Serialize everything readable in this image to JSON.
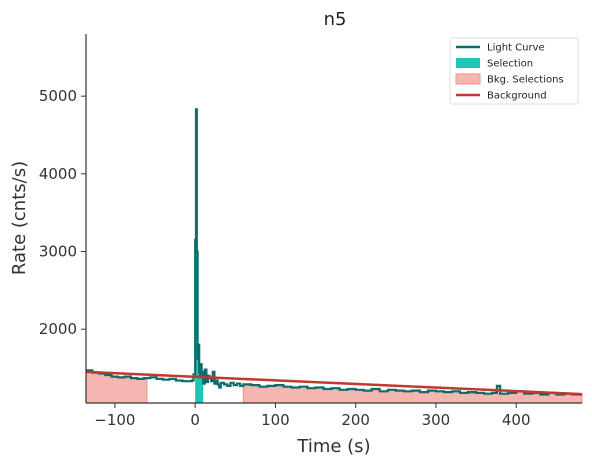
{
  "chart_data": {
    "type": "line",
    "title": "n5",
    "xlabel": "Time (s)",
    "ylabel": "Rate (cnts/s)",
    "xlim": [
      -136,
      482
    ],
    "ylim": [
      1050,
      5800
    ],
    "x_ticks": [
      -100,
      0,
      100,
      200,
      300,
      400
    ],
    "x_tick_labels": [
      "−100",
      "0",
      "100",
      "200",
      "300",
      "400"
    ],
    "y_ticks": [
      2000,
      3000,
      4000,
      5000
    ],
    "y_tick_labels": [
      "2000",
      "3000",
      "4000",
      "5000"
    ],
    "grid": false,
    "legend_position": "top-right",
    "colors": {
      "light_curve": "#0b6e6a",
      "selection": "#1fc4b6",
      "bkg_selection_fill": "#f4b6ae",
      "bkg_selection_edge": "#e8948a",
      "background": "#c0392b",
      "axis": "#333333"
    },
    "legend": [
      {
        "label": "Light Curve",
        "kind": "line",
        "color": "#0b6e6a"
      },
      {
        "label": "Selection",
        "kind": "patch",
        "color": "#1fc4b6"
      },
      {
        "label": "Bkg. Selections",
        "kind": "patch",
        "color": "#f4b6ae"
      },
      {
        "label": "Background",
        "kind": "line",
        "color": "#c0392b"
      }
    ],
    "light_curve": {
      "x": [
        -136,
        -128,
        -120,
        -112,
        -104,
        -96,
        -88,
        -80,
        -72,
        -64,
        -56,
        -48,
        -40,
        -32,
        -24,
        -16,
        -8,
        -4,
        -2,
        0,
        1,
        2,
        3,
        4,
        5,
        6,
        7,
        8,
        10,
        12,
        14,
        16,
        18,
        20,
        22,
        24,
        26,
        28,
        30,
        32,
        36,
        40,
        44,
        48,
        52,
        56,
        60,
        70,
        80,
        90,
        100,
        110,
        120,
        130,
        140,
        150,
        160,
        170,
        180,
        190,
        200,
        210,
        220,
        230,
        240,
        250,
        260,
        270,
        280,
        290,
        300,
        310,
        320,
        330,
        340,
        350,
        360,
        370,
        376,
        380,
        390,
        400,
        410,
        420,
        430,
        440,
        450,
        460,
        470,
        482
      ],
      "y": [
        1470,
        1440,
        1430,
        1410,
        1390,
        1380,
        1390,
        1370,
        1360,
        1370,
        1380,
        1360,
        1350,
        1360,
        1340,
        1330,
        1330,
        1340,
        1420,
        3150,
        4830,
        3000,
        1620,
        1800,
        1450,
        1400,
        1550,
        1450,
        1300,
        1480,
        1320,
        1400,
        1370,
        1330,
        1450,
        1300,
        1340,
        1290,
        1250,
        1310,
        1290,
        1270,
        1310,
        1280,
        1300,
        1270,
        1290,
        1280,
        1260,
        1270,
        1280,
        1260,
        1250,
        1260,
        1240,
        1250,
        1230,
        1240,
        1220,
        1230,
        1220,
        1210,
        1230,
        1200,
        1220,
        1210,
        1200,
        1210,
        1190,
        1210,
        1200,
        1190,
        1200,
        1180,
        1190,
        1180,
        1170,
        1180,
        1270,
        1170,
        1180,
        1200,
        1170,
        1180,
        1160,
        1180,
        1160,
        1170,
        1160,
        1160
      ]
    },
    "background_line": {
      "x": [
        -136,
        482
      ],
      "y": [
        1450,
        1165
      ]
    },
    "selection": {
      "x": [
        0,
        10
      ]
    },
    "bkg_selections": [
      {
        "x": [
          -136,
          -60
        ]
      },
      {
        "x": [
          60,
          482
        ]
      }
    ]
  }
}
